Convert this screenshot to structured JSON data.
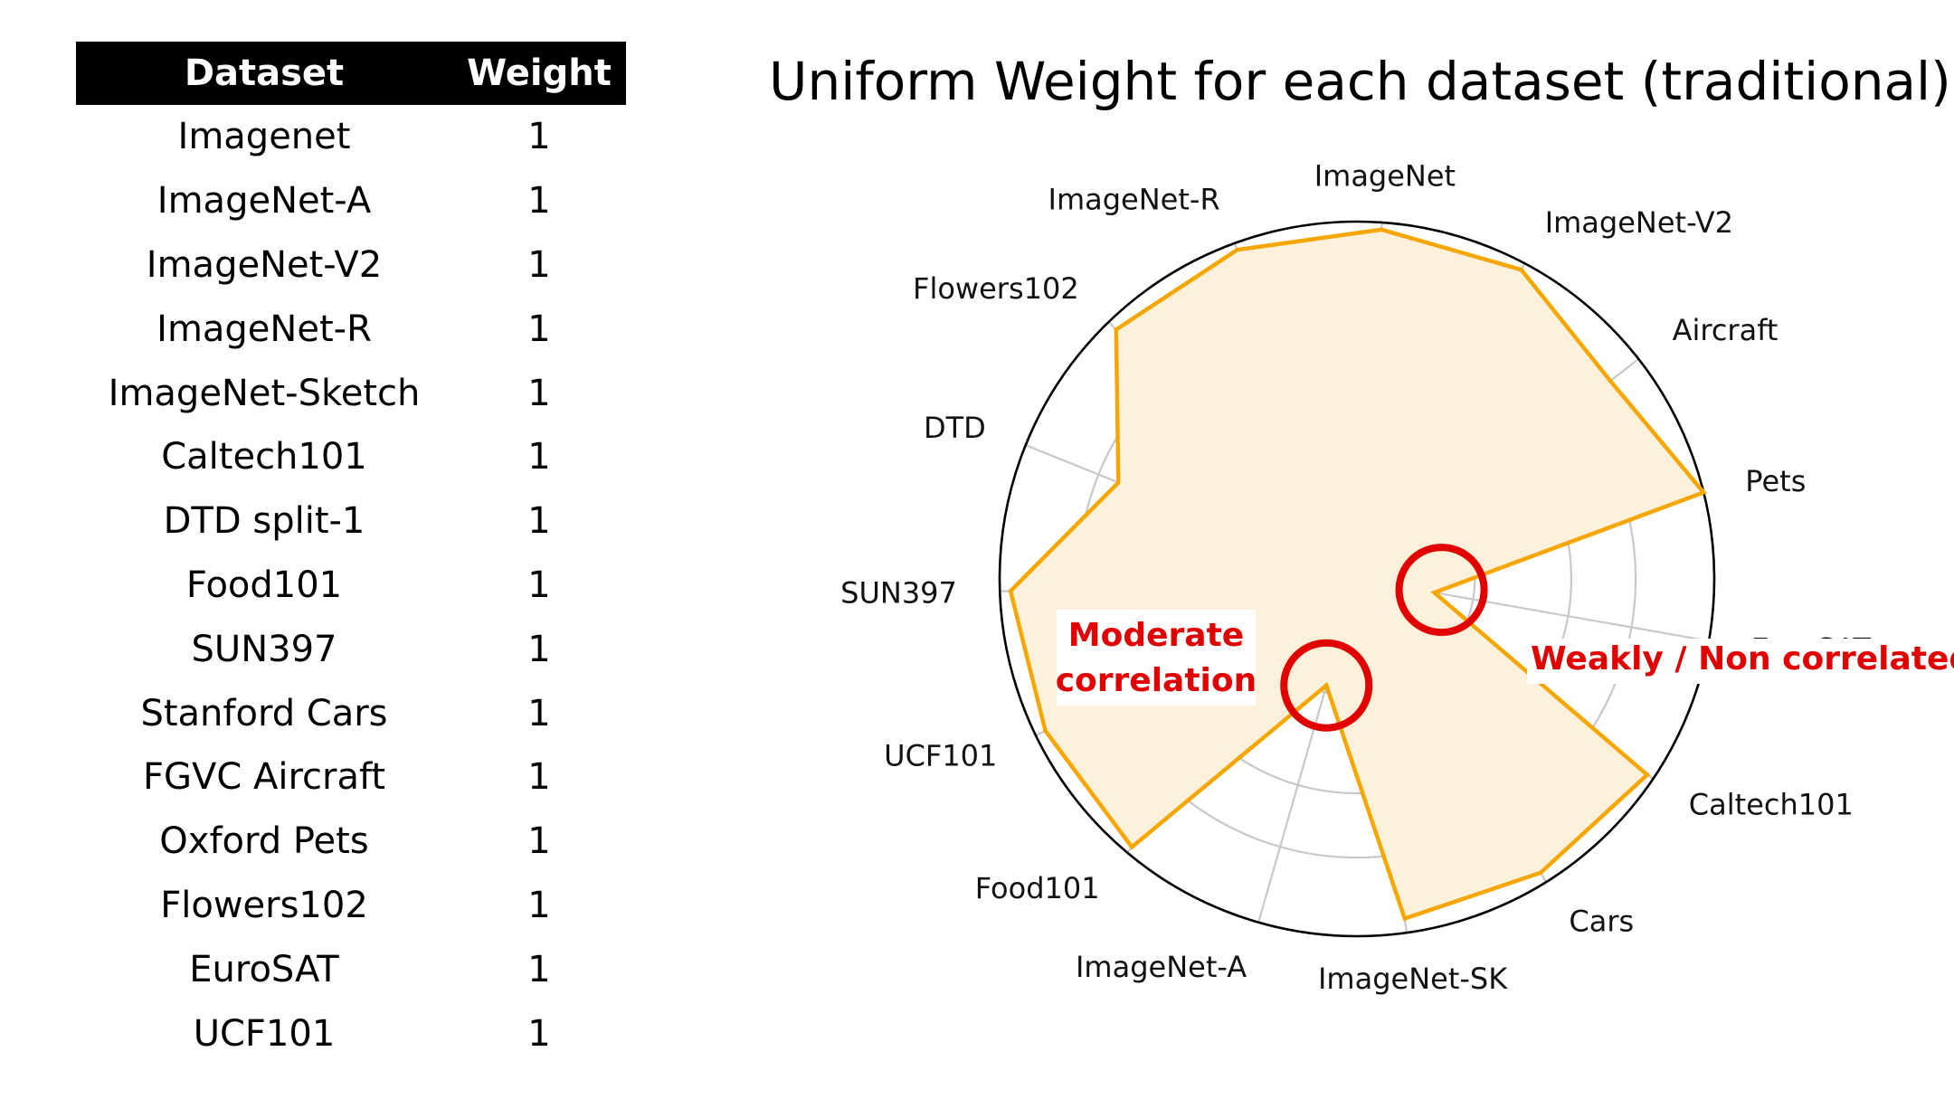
{
  "table": {
    "headers": [
      "Dataset",
      "Weight"
    ],
    "rows": [
      [
        "Imagenet",
        "1"
      ],
      [
        "ImageNet-A",
        "1"
      ],
      [
        "ImageNet-V2",
        "1"
      ],
      [
        "ImageNet-R",
        "1"
      ],
      [
        "ImageNet-Sketch",
        "1"
      ],
      [
        "Caltech101",
        "1"
      ],
      [
        "DTD split-1",
        "1"
      ],
      [
        "Food101",
        "1"
      ],
      [
        "SUN397",
        "1"
      ],
      [
        "Stanford Cars",
        "1"
      ],
      [
        "FGVC Aircraft",
        "1"
      ],
      [
        "Oxford Pets",
        "1"
      ],
      [
        "Flowers102",
        "1"
      ],
      [
        "EuroSAT",
        "1"
      ],
      [
        "UCF101",
        "1"
      ]
    ]
  },
  "chart_data": {
    "type": "radar",
    "title": "Uniform Weight for each dataset (traditional)",
    "categories": [
      "ImageNet",
      "ImageNet-V2",
      "Aircraft",
      "Pets",
      "EuroSAT",
      "Caltech101",
      "Cars",
      "ImageNet-SK",
      "ImageNet-A",
      "Food101",
      "UCF101",
      "SUN397",
      "DTD",
      "Flowers102",
      "ImageNet-R"
    ],
    "series": [
      {
        "values": [
          0.98,
          0.98,
          0.9,
          1.0,
          0.22,
          0.98,
          0.97,
          0.96,
          0.31,
          0.98,
          0.97,
          0.97,
          0.72,
          0.97,
          0.98
        ]
      }
    ],
    "rlim": [
      0,
      1
    ],
    "radial_grid": [
      0.33,
      0.6,
      0.78
    ],
    "grid": true,
    "colors": {
      "line": "#f5a700",
      "fill": "#fdf1dc",
      "grid": "#c8c8c8",
      "outer": "#000000",
      "annotation": "#e00000"
    },
    "annotations": [
      {
        "name": "moderate",
        "lines": [
          "Moderate",
          "correlation"
        ],
        "target": "ImageNet-A"
      },
      {
        "name": "weak",
        "lines": [
          "Weakly / Non correlated"
        ],
        "target": "EuroSAT"
      }
    ]
  }
}
